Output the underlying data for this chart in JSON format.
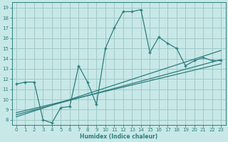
{
  "xlabel": "Humidex (Indice chaleur)",
  "bg_color": "#c8e8e8",
  "grid_color": "#a0c8c8",
  "line_color": "#2e7e7e",
  "xlim": [
    -0.5,
    23.5
  ],
  "ylim": [
    7.5,
    19.5
  ],
  "xticks": [
    0,
    1,
    2,
    3,
    4,
    5,
    6,
    7,
    8,
    9,
    10,
    11,
    12,
    13,
    14,
    15,
    16,
    17,
    18,
    19,
    20,
    21,
    22,
    23
  ],
  "yticks": [
    8,
    9,
    10,
    11,
    12,
    13,
    14,
    15,
    16,
    17,
    18,
    19
  ],
  "series1_x": [
    0,
    1,
    2,
    3,
    4,
    5,
    6,
    7,
    8,
    9,
    10,
    11,
    12,
    13,
    14,
    15,
    16,
    17,
    18,
    19,
    20,
    21,
    22,
    23
  ],
  "series1_y": [
    11.5,
    11.7,
    11.7,
    8.0,
    7.7,
    9.2,
    9.3,
    13.3,
    11.7,
    9.5,
    15.0,
    17.0,
    18.6,
    18.6,
    18.8,
    14.6,
    16.1,
    15.5,
    15.0,
    13.3,
    13.8,
    14.1,
    13.8,
    13.8
  ],
  "series2_x": [
    0,
    23
  ],
  "series2_y": [
    8.3,
    14.8
  ],
  "series3_x": [
    0,
    23
  ],
  "series3_y": [
    8.5,
    13.9
  ],
  "series4_x": [
    0,
    23
  ],
  "series4_y": [
    8.7,
    13.5
  ]
}
